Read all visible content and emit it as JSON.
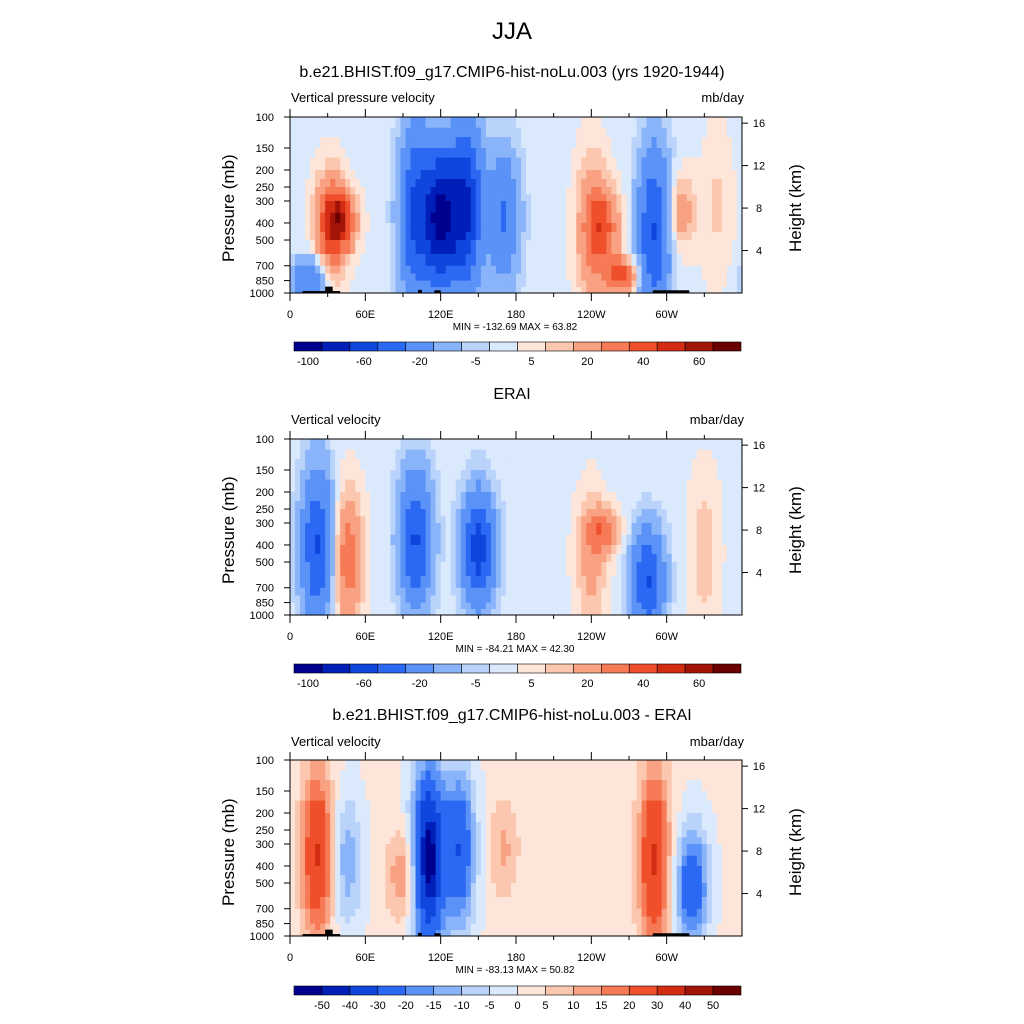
{
  "title": "JJA",
  "panels": [
    {
      "title": "b.e21.BHIST.f09_g17.CMIP6-hist-noLu.003 (yrs 1920-1944)",
      "left_label": "Vertical pressure velocity",
      "right_label": "mb/day",
      "minmax": "MIN = -132.69  MAX =  63.82"
    },
    {
      "title": "ERAI",
      "left_label": "Vertical velocity",
      "right_label": "mbar/day",
      "minmax": "MIN = -84.21  MAX =  42.30"
    },
    {
      "title": "b.e21.BHIST.f09_g17.CMIP6-hist-noLu.003 - ERAI",
      "left_label": "Vertical velocity",
      "right_label": "mbar/day",
      "minmax": "MIN = -83.13  MAX =  50.82"
    }
  ],
  "axes": {
    "ylabel_left": "Pressure (mb)",
    "ylabel_right": "Height (km)",
    "x_ticks": [
      "0",
      "60E",
      "120E",
      "180",
      "120W",
      "60W"
    ],
    "pressure_ticks": [
      "100",
      "150",
      "200",
      "250",
      "300",
      "400",
      "500",
      "700",
      "850",
      "1000"
    ],
    "height_ticks": [
      "16",
      "12",
      "8",
      "4"
    ]
  },
  "colorbars": {
    "abs_labels": [
      "-100",
      "-60",
      "-20",
      "-5",
      "5",
      "20",
      "40",
      "60"
    ],
    "diff_labels": [
      "-50",
      "-40",
      "-30",
      "-20",
      "-15",
      "-10",
      "-5",
      "0",
      "5",
      "10",
      "15",
      "20",
      "30",
      "40",
      "50"
    ]
  },
  "palette": [
    "#00008f",
    "#001fb8",
    "#0f46dd",
    "#2b69f3",
    "#5b92f7",
    "#8ab4f9",
    "#b9d3fb",
    "#dbe9fd",
    "#fde6d9",
    "#fbc7ae",
    "#f8a283",
    "#f57a55",
    "#ef4f2b",
    "#d22c12",
    "#a31408",
    "#6b0000"
  ],
  "chart_data": [
    {
      "type": "heatmap",
      "title": "b.e21.BHIST.f09_g17.CMIP6-hist-noLu.003 (yrs 1920-1944)",
      "variable": "Vertical pressure velocity",
      "units": "mb/day",
      "min": -132.69,
      "max": 63.82,
      "x_axis": "longitude 0-360",
      "y_axis": "pressure 100-1000 mb (log)",
      "features": [
        {
          "lon": 15,
          "p": [
            700,
            1000
          ],
          "value": -40
        },
        {
          "lon": 32,
          "p": [
            250,
            700
          ],
          "value": 30
        },
        {
          "lon": 40,
          "p": [
            300,
            500
          ],
          "value": 40
        },
        {
          "lon": 100,
          "p": [
            150,
            850
          ],
          "value": -60
        },
        {
          "lon": 120,
          "p": [
            200,
            700
          ],
          "value": -100
        },
        {
          "lon": 140,
          "p": [
            150,
            700
          ],
          "value": -80
        },
        {
          "lon": 170,
          "p": [
            200,
            700
          ],
          "value": -40
        },
        {
          "lon": 240,
          "p": [
            200,
            1000
          ],
          "value": 20
        },
        {
          "lon": 250,
          "p": [
            300,
            600
          ],
          "value": 30
        },
        {
          "lon": 265,
          "p": [
            700,
            900
          ],
          "value": 40
        },
        {
          "lon": 290,
          "p": [
            200,
            1000
          ],
          "value": -60
        },
        {
          "lon": 310,
          "p": [
            250,
            500
          ],
          "value": 20
        },
        {
          "lon": 340,
          "p": [
            150,
            700
          ],
          "value": 8
        }
      ]
    },
    {
      "type": "heatmap",
      "title": "ERAI",
      "variable": "Vertical velocity",
      "units": "mbar/day",
      "min": -84.21,
      "max": 42.3,
      "x_axis": "longitude 0-360",
      "y_axis": "pressure 100-1000 mb (log)",
      "features": [
        {
          "lon": 22,
          "p": [
            200,
            850
          ],
          "value": -60
        },
        {
          "lon": 45,
          "p": [
            250,
            900
          ],
          "value": 30
        },
        {
          "lon": 100,
          "p": [
            200,
            700
          ],
          "value": -60
        },
        {
          "lon": 150,
          "p": [
            250,
            700
          ],
          "value": -70
        },
        {
          "lon": 240,
          "p": [
            250,
            1000
          ],
          "value": 15
        },
        {
          "lon": 250,
          "p": [
            280,
            400
          ],
          "value": 25
        },
        {
          "lon": 285,
          "p": [
            400,
            1000
          ],
          "value": -60
        },
        {
          "lon": 330,
          "p": [
            200,
            1000
          ],
          "value": 10
        }
      ]
    },
    {
      "type": "heatmap",
      "title": "b.e21.BHIST.f09_g17.CMIP6-hist-noLu.003 - ERAI",
      "variable": "Vertical velocity",
      "units": "mbar/day",
      "min": -83.13,
      "max": 50.82,
      "x_axis": "longitude 0-360",
      "y_axis": "pressure 100-1000 mb (log)",
      "features": [
        {
          "lon": 22,
          "p": [
            150,
            800
          ],
          "value": 30
        },
        {
          "lon": 45,
          "p": [
            200,
            700
          ],
          "value": -15
        },
        {
          "lon": 90,
          "p": [
            300,
            700
          ],
          "value": 15
        },
        {
          "lon": 110,
          "p": [
            150,
            900
          ],
          "value": -50
        },
        {
          "lon": 135,
          "p": [
            150,
            700
          ],
          "value": -30
        },
        {
          "lon": 170,
          "p": [
            200,
            500
          ],
          "value": 10
        },
        {
          "lon": 290,
          "p": [
            150,
            900
          ],
          "value": 30
        },
        {
          "lon": 320,
          "p": [
            300,
            900
          ],
          "value": -30
        }
      ]
    }
  ]
}
